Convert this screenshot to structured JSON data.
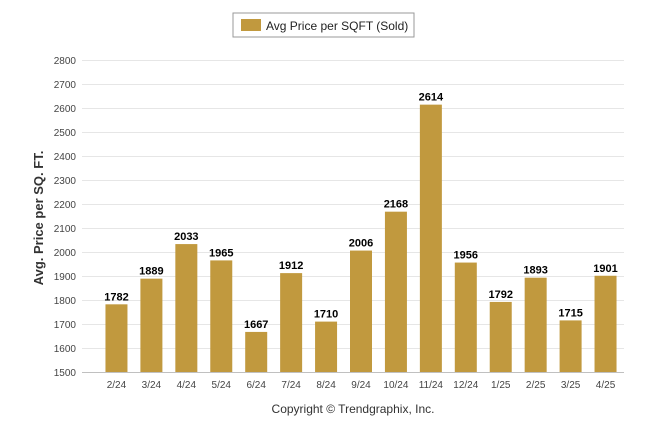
{
  "chart_data": {
    "type": "bar",
    "ylabel": "Avg. Price per SQ. FT.",
    "xlabel": "",
    "ylim": [
      1500,
      2800
    ],
    "yticks": [
      1500,
      1600,
      1700,
      1800,
      1900,
      2000,
      2100,
      2200,
      2300,
      2400,
      2500,
      2600,
      2700,
      2800
    ],
    "grid": true,
    "legend_position": "top-center",
    "categories": [
      "2/24",
      "3/24",
      "4/24",
      "5/24",
      "6/24",
      "7/24",
      "8/24",
      "9/24",
      "10/24",
      "11/24",
      "12/24",
      "1/25",
      "2/25",
      "3/25",
      "4/25"
    ],
    "series": [
      {
        "name": "Avg Price per SQFT (Sold)",
        "color": "#c1993e",
        "values": [
          1782,
          1889,
          2033,
          1965,
          1667,
          1912,
          1710,
          2006,
          2168,
          2614,
          1956,
          1792,
          1893,
          1715,
          1901
        ]
      }
    ]
  },
  "footer": {
    "copyright": "Copyright © Trendgraphix, Inc."
  },
  "colors": {
    "bar": "#c1993e",
    "grid": "#e6e6e6",
    "axis": "#c0c0c0"
  }
}
